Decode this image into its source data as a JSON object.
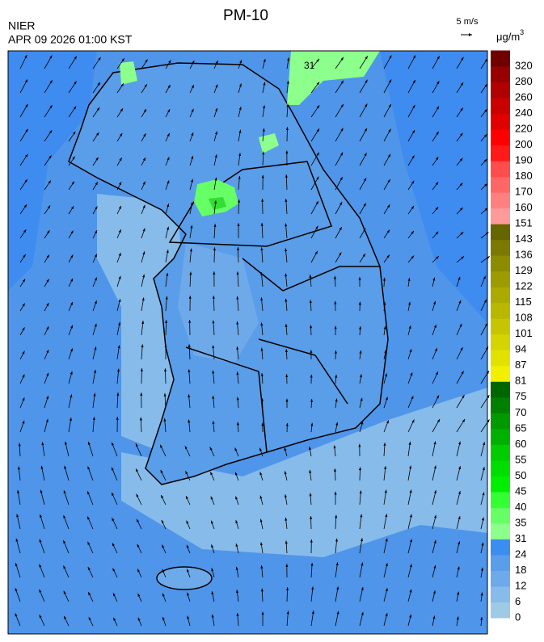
{
  "header": {
    "title": "PM-10",
    "agency": "NIER",
    "timestamp": "APR 09 2026 01:00 KST",
    "wind_scale": "5 m/s"
  },
  "map": {
    "contour_label": "31"
  },
  "legend": {
    "unit": {
      "base": "μg/m",
      "sup": "3"
    },
    "labels": [
      0,
      6,
      12,
      18,
      24,
      31,
      35,
      40,
      45,
      50,
      55,
      60,
      65,
      70,
      75,
      81,
      87,
      94,
      101,
      108,
      115,
      122,
      129,
      136,
      143,
      151,
      160,
      170,
      180,
      190,
      200,
      220,
      240,
      260,
      280,
      320
    ],
    "colors": [
      "#9ecae6",
      "#86bbea",
      "#6eaaea",
      "#5a9de8",
      "#3b8ef0",
      "#8cff8c",
      "#66ff66",
      "#33ff33",
      "#00ee00",
      "#00dd00",
      "#00cc00",
      "#00b000",
      "#009900",
      "#008000",
      "#006600",
      "#f0f000",
      "#e2e200",
      "#d4d400",
      "#c6c600",
      "#b8b800",
      "#aaaa00",
      "#9c9c00",
      "#8c8c00",
      "#7a7a00",
      "#666600",
      "#ff9a9a",
      "#ff8080",
      "#ff6666",
      "#ff4c4c",
      "#ff1a1a",
      "#ff0000",
      "#e00000",
      "#c80000",
      "#b00000",
      "#980000",
      "#700000"
    ]
  }
}
